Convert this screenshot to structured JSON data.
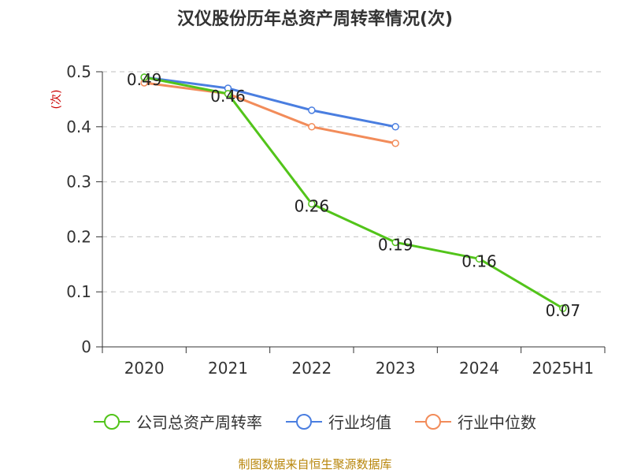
{
  "title": "汉仪股份历年总资产周转率情况(次)",
  "source": "制图数据来自恒生聚源数据库",
  "chart_data": {
    "type": "line",
    "title": "汉仪股份历年总资产周转率情况(次)",
    "xlabel": "",
    "ylabel": "(次)",
    "categories": [
      "2020",
      "2021",
      "2022",
      "2023",
      "2024",
      "2025H1"
    ],
    "ylim": [
      0,
      0.5
    ],
    "yticks": [
      "0",
      "0.1",
      "0.2",
      "0.3",
      "0.4",
      "0.5"
    ],
    "grid": "horizontal dashed",
    "legend_position": "bottom",
    "series": [
      {
        "name": "公司总资产周转率",
        "color": "#52c41a",
        "values": [
          0.49,
          0.46,
          0.26,
          0.19,
          0.16,
          0.07
        ],
        "labels": [
          "0.49",
          "0.46",
          "0.26",
          "0.19",
          "0.16",
          "0.07"
        ]
      },
      {
        "name": "行业均值",
        "color": "#4a7ee0",
        "values": [
          0.49,
          0.47,
          0.43,
          0.4,
          null,
          null
        ]
      },
      {
        "name": "行业中位数",
        "color": "#f28c5a",
        "values": [
          0.48,
          0.46,
          0.4,
          0.37,
          null,
          null
        ]
      }
    ]
  }
}
